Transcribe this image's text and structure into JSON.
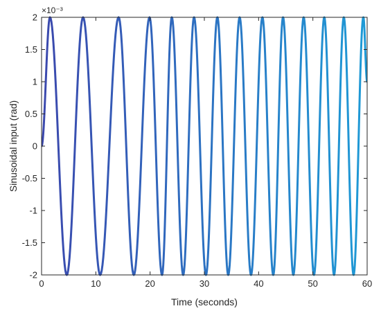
{
  "chart_data": {
    "type": "line",
    "title": "",
    "xlabel": "Time (seconds)",
    "ylabel": "Sinusoidal input (rad)",
    "xlim": [
      0,
      60
    ],
    "ylim": [
      -2,
      2
    ],
    "y_exponent_label": "×10⁻³",
    "y_scale_note": "y values shown in units of 10^-3 rad",
    "grid": false,
    "legend": "none",
    "xticks": [
      0,
      10,
      20,
      30,
      40,
      50,
      60
    ],
    "xtick_labels": [
      "0",
      "10",
      "20",
      "30",
      "40",
      "50",
      "60"
    ],
    "yticks": [
      -2,
      -1.5,
      -1,
      -0.5,
      0,
      0.5,
      1,
      1.5,
      2
    ],
    "ytick_labels": [
      "-2",
      "-1.5",
      "-1",
      "-0.5",
      "0",
      "0.5",
      "1",
      "1.5",
      "2"
    ],
    "series": [
      {
        "color_start": "#3b48ad",
        "color_end": "#1e9ad6",
        "x": [
          0,
          1.55,
          4.65,
          7.65,
          10.8,
          14.2,
          17.0,
          19.9,
          22.2,
          24.0,
          26.1,
          28.1,
          30.3,
          32.4,
          34.4,
          36.5,
          38.6,
          40.7,
          42.7,
          44.5,
          46.4,
          48.3,
          50.2,
          52.1,
          53.9,
          55.7,
          57.5,
          59.3,
          60
        ],
        "values": [
          0,
          2,
          -2,
          2,
          -2,
          2,
          -2,
          2,
          -2,
          2,
          -2,
          2,
          -2,
          2,
          -2,
          2,
          -2,
          2,
          -2,
          2,
          -2,
          2,
          -2,
          2,
          -2,
          2,
          -2,
          2,
          1
        ]
      }
    ]
  }
}
